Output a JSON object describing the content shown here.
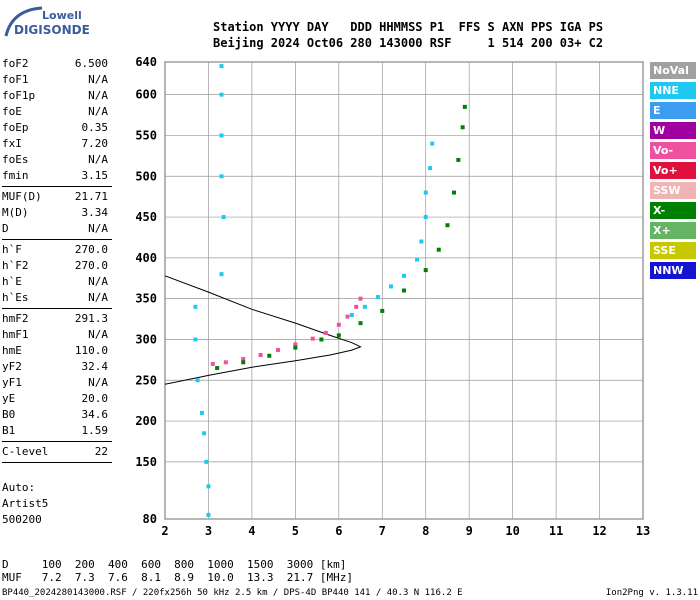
{
  "logo": {
    "top": "Lowell",
    "bottom": "DIGISONDE"
  },
  "header": {
    "line1": "Station YYYY DAY   DDD HHMMSS P1  FFS S AXN PPS IGA PS",
    "line2": "Beijing 2024 Oct06 280 143000 RSF     1 514 200 03+ C2"
  },
  "params": [
    {
      "label": "foF2",
      "value": "6.500"
    },
    {
      "label": "foF1",
      "value": "N/A"
    },
    {
      "label": "foF1p",
      "value": "N/A"
    },
    {
      "label": "foE",
      "value": "N/A"
    },
    {
      "label": "foEp",
      "value": "0.35"
    },
    {
      "label": "fxI",
      "value": "7.20"
    },
    {
      "label": "foEs",
      "value": "N/A"
    },
    {
      "label": "fmin",
      "value": "3.15",
      "sep": true
    },
    {
      "label": "MUF(D)",
      "value": "21.71"
    },
    {
      "label": "M(D)",
      "value": "3.34"
    },
    {
      "label": "D",
      "value": "N/A",
      "sep": true
    },
    {
      "label": "h`F",
      "value": "270.0"
    },
    {
      "label": "h`F2",
      "value": "270.0"
    },
    {
      "label": "h`E",
      "value": "N/A"
    },
    {
      "label": "h`Es",
      "value": "N/A",
      "sep": true
    },
    {
      "label": "hmF2",
      "value": "291.3"
    },
    {
      "label": "hmF1",
      "value": "N/A"
    },
    {
      "label": "hmE",
      "value": "110.0"
    },
    {
      "label": "yF2",
      "value": "32.4"
    },
    {
      "label": "yF1",
      "value": "N/A"
    },
    {
      "label": "yE",
      "value": "20.0"
    },
    {
      "label": "B0",
      "value": "34.6"
    },
    {
      "label": "B1",
      "value": "1.59",
      "sep": true
    },
    {
      "label": "C-level",
      "value": "22",
      "sep": true
    }
  ],
  "auto": {
    "line1": "Auto:",
    "line2": "Artist5",
    "line3": "500200"
  },
  "legend": [
    {
      "label": "NoVal",
      "color": "#a0a0a0"
    },
    {
      "label": "NNE",
      "color": "#1ec8f0"
    },
    {
      "label": "E",
      "color": "#3c9cf0"
    },
    {
      "label": "W",
      "color": "#a000a0"
    },
    {
      "label": "Vo-",
      "color": "#f050a0"
    },
    {
      "label": "Vo+",
      "color": "#e0103c"
    },
    {
      "label": "SSW",
      "color": "#f0b4b4"
    },
    {
      "label": "X-",
      "color": "#008000"
    },
    {
      "label": "X+",
      "color": "#64b464"
    },
    {
      "label": "SSE",
      "color": "#c8c800"
    },
    {
      "label": "NNW",
      "color": "#1414d2"
    }
  ],
  "muf_table": {
    "row1": "D     100  200  400  600  800  1000  1500  3000 [km]",
    "row2": "MUF   7.2  7.3  7.6  8.1  8.9  10.0  13.3  21.7 [MHz]"
  },
  "footer": "BP440_2024280143000.RSF / 220fx256h 50 kHz 2.5 km / DPS-4D BP440 141 / 40.3 N 116.2 E",
  "version": "Ion2Png v. 1.3.11",
  "chart_data": {
    "type": "scatter",
    "xlim": [
      2,
      13
    ],
    "ylim": [
      80,
      640
    ],
    "x_ticks": [
      2,
      3,
      4,
      5,
      6,
      7,
      8,
      9,
      10,
      11,
      12,
      13
    ],
    "y_ticks": [
      80,
      150,
      200,
      250,
      300,
      350,
      400,
      450,
      500,
      550,
      600,
      640
    ],
    "grid": true,
    "series": [
      {
        "name": "Vo-",
        "color": "#f050a0",
        "points": [
          [
            3.1,
            270
          ],
          [
            3.4,
            272
          ],
          [
            3.8,
            276
          ],
          [
            4.2,
            281
          ],
          [
            4.6,
            287
          ],
          [
            5.0,
            294
          ],
          [
            5.4,
            301
          ],
          [
            5.7,
            308
          ],
          [
            6.0,
            318
          ],
          [
            6.2,
            328
          ],
          [
            6.4,
            340
          ],
          [
            6.5,
            350
          ]
        ]
      },
      {
        "name": "NNE",
        "color": "#1ec8f0",
        "points": [
          [
            6.3,
            330
          ],
          [
            6.6,
            340
          ],
          [
            6.9,
            352
          ],
          [
            7.2,
            365
          ],
          [
            7.5,
            378
          ],
          [
            7.8,
            398
          ],
          [
            7.9,
            420
          ],
          [
            8.0,
            450
          ],
          [
            8.0,
            480
          ],
          [
            8.1,
            510
          ],
          [
            8.15,
            540
          ]
        ]
      },
      {
        "name": "X-",
        "color": "#008000",
        "points": [
          [
            3.2,
            265
          ],
          [
            3.8,
            272
          ],
          [
            4.4,
            280
          ],
          [
            5.0,
            290
          ],
          [
            5.6,
            300
          ],
          [
            6.0,
            305
          ],
          [
            6.5,
            320
          ],
          [
            7.0,
            335
          ],
          [
            7.5,
            360
          ],
          [
            8.0,
            385
          ],
          [
            8.3,
            410
          ],
          [
            8.5,
            440
          ],
          [
            8.65,
            480
          ],
          [
            8.75,
            520
          ],
          [
            8.85,
            560
          ],
          [
            8.9,
            585
          ]
        ]
      },
      {
        "name": "NNE",
        "color": "#1ec8f0",
        "points": [
          [
            3.0,
            85
          ],
          [
            3.0,
            120
          ],
          [
            2.95,
            150
          ],
          [
            2.9,
            185
          ],
          [
            2.85,
            210
          ],
          [
            2.75,
            250
          ],
          [
            2.7,
            300
          ],
          [
            2.7,
            340
          ],
          [
            3.3,
            380
          ],
          [
            3.35,
            450
          ],
          [
            3.3,
            500
          ],
          [
            3.3,
            550
          ],
          [
            3.3,
            600
          ],
          [
            3.3,
            635
          ]
        ]
      }
    ],
    "profile": {
      "x": [
        2.0,
        3.0,
        4.0,
        5.0,
        5.8,
        6.3,
        6.5,
        6.3,
        5.8,
        5.0,
        4.0,
        3.0,
        2.0
      ],
      "y": [
        245,
        256,
        266,
        274,
        281,
        287,
        291,
        296,
        305,
        320,
        337,
        358,
        378
      ]
    }
  }
}
